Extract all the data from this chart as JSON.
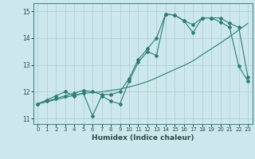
{
  "title": "",
  "xlabel": "Humidex (Indice chaleur)",
  "bg_color": "#cce8ec",
  "grid_color": "#aacccc",
  "line_color": "#2e7d72",
  "xlim": [
    -0.5,
    23.5
  ],
  "ylim": [
    10.8,
    15.3
  ],
  "yticks": [
    11,
    12,
    13,
    14,
    15
  ],
  "xticks": [
    0,
    1,
    2,
    3,
    4,
    5,
    6,
    7,
    8,
    9,
    10,
    11,
    12,
    13,
    14,
    15,
    16,
    17,
    18,
    19,
    20,
    21,
    22,
    23
  ],
  "line1_x": [
    0,
    1,
    2,
    3,
    4,
    5,
    6,
    7,
    8,
    9,
    10,
    11,
    12,
    13,
    14,
    15,
    16,
    17,
    18,
    19,
    20,
    21,
    22,
    23
  ],
  "line1_y": [
    11.55,
    11.7,
    11.85,
    12.0,
    11.85,
    11.95,
    11.1,
    11.85,
    11.65,
    11.55,
    12.4,
    13.1,
    13.5,
    13.35,
    14.9,
    14.85,
    14.65,
    14.2,
    14.75,
    14.75,
    14.6,
    14.4,
    12.95,
    12.4
  ],
  "line2_x": [
    0,
    1,
    2,
    3,
    4,
    5,
    6,
    7,
    8,
    9,
    10,
    11,
    12,
    13,
    14,
    15,
    16,
    17,
    18,
    19,
    20,
    21,
    22,
    23
  ],
  "line2_y": [
    11.55,
    11.63,
    11.71,
    11.79,
    11.87,
    11.95,
    11.97,
    12.0,
    12.05,
    12.1,
    12.18,
    12.27,
    12.38,
    12.52,
    12.68,
    12.83,
    12.98,
    13.15,
    13.38,
    13.6,
    13.82,
    14.05,
    14.3,
    14.55
  ],
  "line3_x": [
    0,
    1,
    2,
    3,
    4,
    5,
    6,
    7,
    8,
    9,
    10,
    11,
    12,
    13,
    14,
    15,
    16,
    17,
    18,
    19,
    20,
    21,
    22,
    23
  ],
  "line3_y": [
    11.55,
    11.65,
    11.75,
    11.85,
    11.95,
    12.05,
    12.0,
    11.9,
    11.9,
    12.0,
    12.5,
    13.2,
    13.6,
    14.0,
    14.9,
    14.85,
    14.65,
    14.5,
    14.75,
    14.75,
    14.75,
    14.55,
    14.4,
    12.55
  ]
}
